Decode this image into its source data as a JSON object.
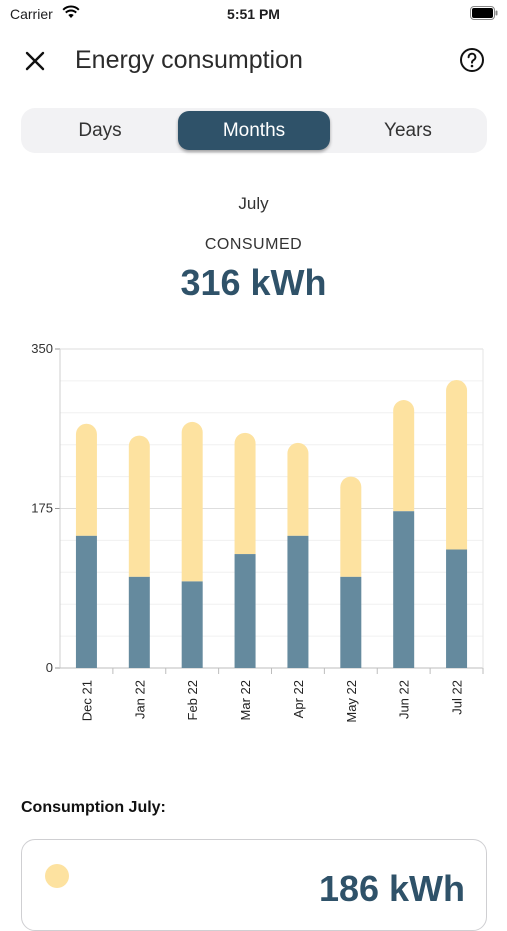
{
  "status_bar": {
    "carrier": "Carrier",
    "time": "5:51 PM"
  },
  "header": {
    "title": "Energy consumption",
    "close_icon": "close-icon",
    "help_icon": "help-circle-icon"
  },
  "tabs": [
    {
      "label": "Days",
      "selected": false
    },
    {
      "label": "Months",
      "selected": true
    },
    {
      "label": "Years",
      "selected": false
    }
  ],
  "summary": {
    "period": "July",
    "consumed_label": "CONSUMED",
    "consumed_value": "316 kWh"
  },
  "colors": {
    "accent": "#2f5269",
    "stack_bottom": "#658a9e",
    "stack_top": "#fde2a0",
    "legend_dot": "#fde2a0"
  },
  "chart_data": {
    "type": "bar",
    "stacked": true,
    "categories": [
      "Dec 21",
      "Jan 22",
      "Feb 22",
      "Mar 22",
      "Apr 22",
      "May 22",
      "Jun 22",
      "Jul 22"
    ],
    "series": [
      {
        "values": [
          145,
          100,
          95,
          125,
          145,
          100,
          172,
          130
        ]
      },
      {
        "values": [
          123,
          155,
          175,
          133,
          102,
          110,
          122,
          186
        ]
      }
    ],
    "ylim": [
      0,
      350
    ],
    "yticks": [
      "0",
      "175",
      "350"
    ],
    "grid": true
  },
  "breakdown": {
    "title": "Consumption July:",
    "card_value": "186 kWh"
  }
}
